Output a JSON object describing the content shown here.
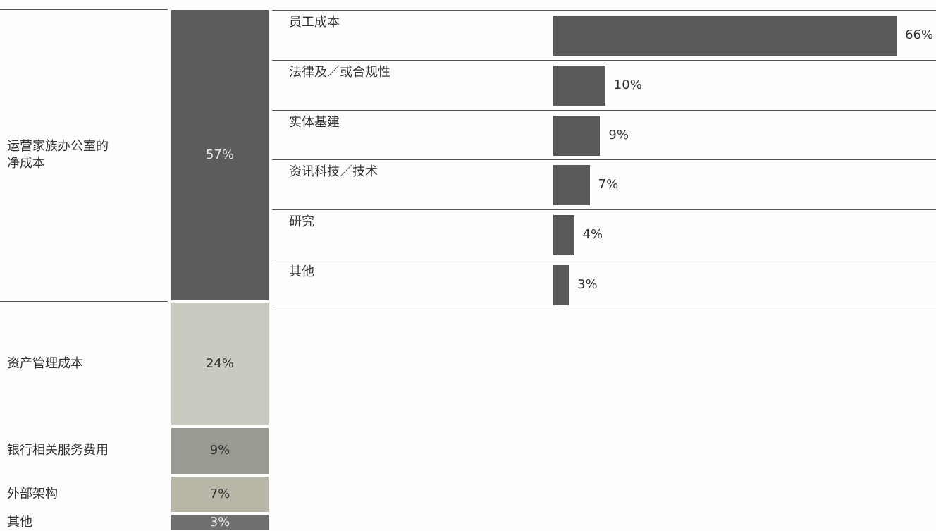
{
  "chart_data": [
    {
      "type": "stacked-column",
      "categories": [
        "运营家族办公室的净成本",
        "资产管理成本",
        "银行相关服务费用",
        "外部架构",
        "其他"
      ],
      "values": [
        57,
        24,
        9,
        7,
        3
      ],
      "value_labels": [
        "57%",
        "24%",
        "9%",
        "7%",
        "3%"
      ],
      "colors": [
        "#5b5c5e",
        "#cbcac0",
        "#9b9a92",
        "#b8b6a6",
        "#6e6f71"
      ]
    },
    {
      "type": "bar",
      "categories": [
        "员工成本",
        "法律及／或合规性",
        "实体基建",
        "资讯科技／技术",
        "研究",
        "其他"
      ],
      "values": [
        66,
        10,
        9,
        7,
        4,
        3
      ],
      "value_labels": [
        "66%",
        "10%",
        "9%",
        "7%",
        "4%",
        "3%"
      ],
      "color": "#58595b"
    }
  ]
}
